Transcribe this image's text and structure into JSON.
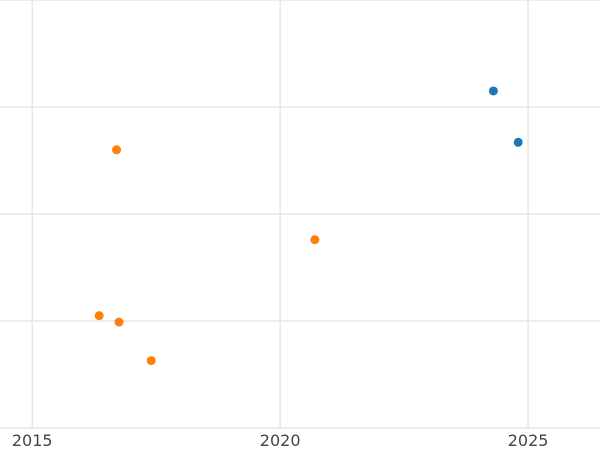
{
  "chart_data": {
    "type": "scatter",
    "title": "",
    "xlabel": "",
    "ylabel": "",
    "x_ticks": [
      2015,
      2020,
      2025
    ],
    "x_tick_labels": [
      "2015",
      "2020",
      "2025"
    ],
    "xlim": [
      2014.35,
      2026.45
    ],
    "ylim": [
      0,
      4
    ],
    "y_gridlines": [
      0,
      1,
      2,
      3,
      4
    ],
    "y_tick_labels_visible": false,
    "grid": true,
    "legend": "none",
    "series": [
      {
        "color": "#1f77b4",
        "points": [
          {
            "x": 2024.3,
            "y": 3.15
          },
          {
            "x": 2024.8,
            "y": 2.67
          }
        ]
      },
      {
        "color": "#ff7f0e",
        "points": [
          {
            "x": 2016.7,
            "y": 2.6
          },
          {
            "x": 2020.7,
            "y": 1.76
          },
          {
            "x": 2016.35,
            "y": 1.05
          },
          {
            "x": 2016.75,
            "y": 0.99
          },
          {
            "x": 2017.4,
            "y": 0.63
          }
        ]
      }
    ]
  }
}
